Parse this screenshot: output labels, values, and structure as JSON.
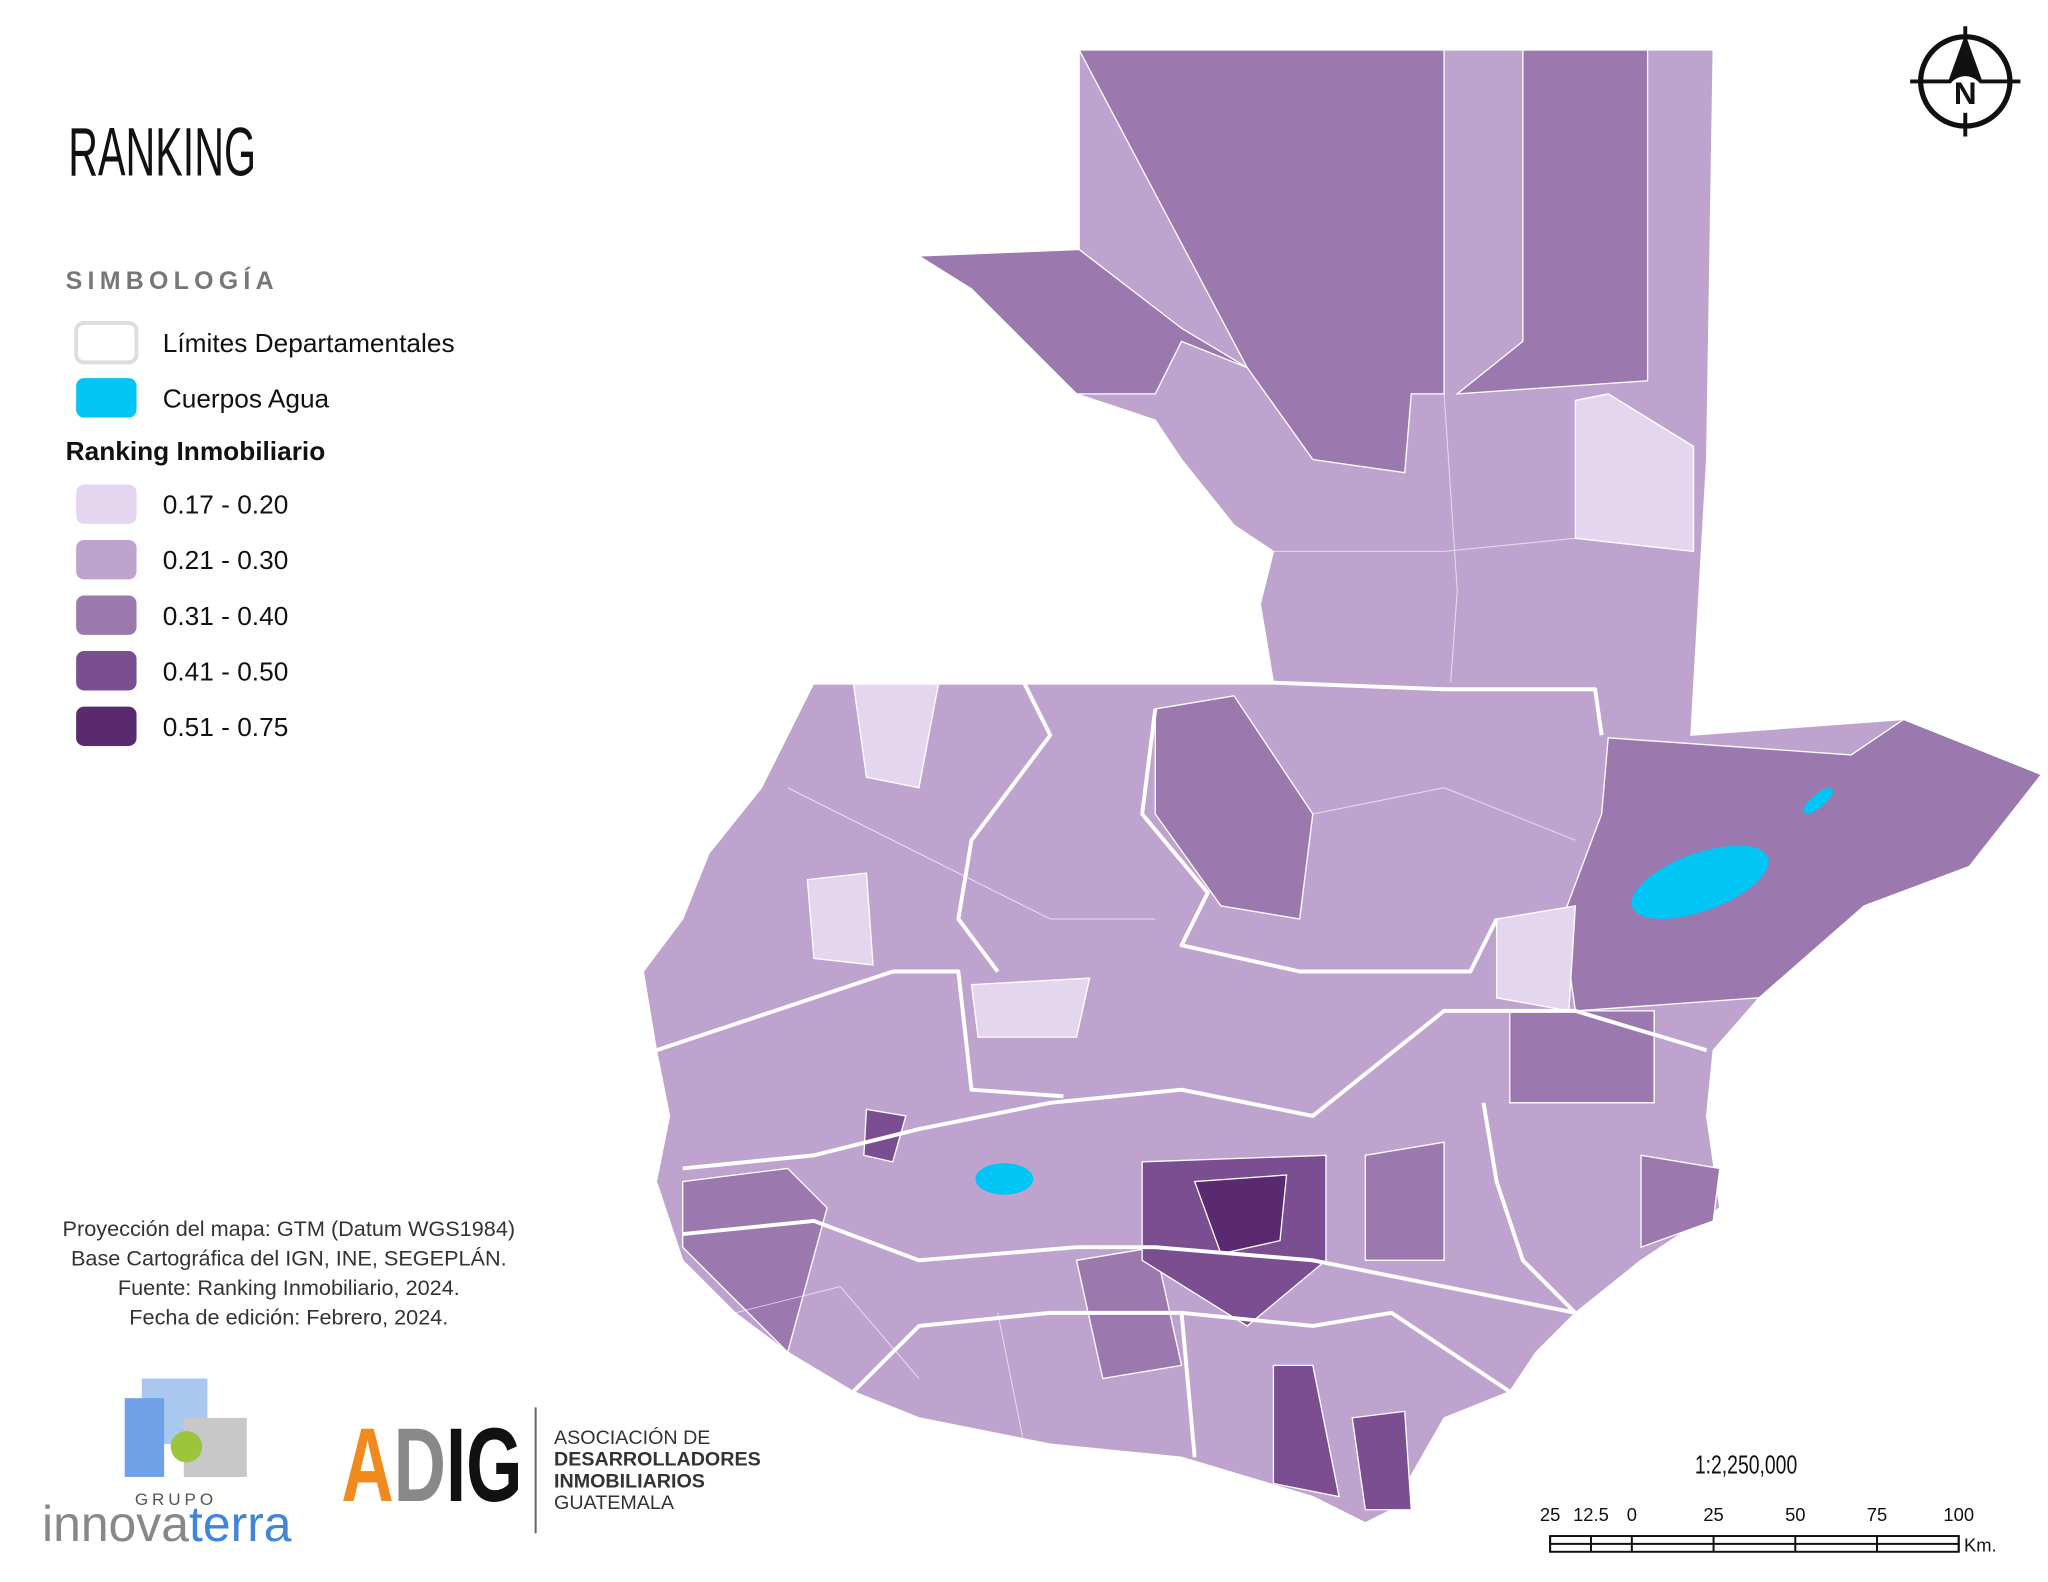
{
  "title": "RANKING",
  "legend": {
    "heading": "SIMBOLOGÍA",
    "layers": [
      {
        "label": "Límites Departamentales",
        "color": "#ffffff"
      },
      {
        "label": "Cuerpos Agua",
        "color": "#00c5f5"
      }
    ],
    "ranking": {
      "heading": "Ranking Inmobiliario",
      "classes": [
        {
          "label": "0.17 - 0.20",
          "color": "#e4d6ef"
        },
        {
          "label": "0.21 - 0.30",
          "color": "#bea3cf"
        },
        {
          "label": "0.31 - 0.40",
          "color": "#9b78ae"
        },
        {
          "label": "0.41 - 0.50",
          "color": "#7a4e90"
        },
        {
          "label": "0.51 - 0.75",
          "color": "#5a2a70"
        }
      ]
    }
  },
  "notes": [
    "Proyección del mapa: GTM (Datum WGS1984)",
    "Base Cartográfica del IGN, INE, SEGEPLÁN.",
    "Fuente: Ranking Inmobiliario, 2024.",
    "Fecha de edición: Febrero, 2024."
  ],
  "logos": {
    "innovaterra": {
      "group": "GRUPO",
      "name_parts": [
        "innova",
        "terra"
      ]
    },
    "adig": {
      "letters": [
        "A",
        "D",
        "IG"
      ],
      "lines": [
        "ASOCIACIÓN DE",
        "DESARROLLADORES",
        "INMOBILIARIOS",
        "GUATEMALA"
      ]
    }
  },
  "north": "N",
  "scale": {
    "ratio": "1:2,250,000",
    "unit": "Km.",
    "ticks": [
      {
        "value": -25,
        "label": "25"
      },
      {
        "value": -12.5,
        "label": "12.5"
      },
      0,
      25,
      50,
      75,
      100
    ]
  }
}
